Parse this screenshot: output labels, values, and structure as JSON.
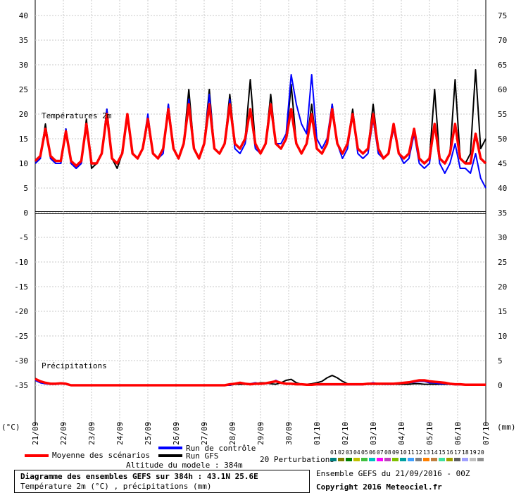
{
  "chart_data": {
    "type": "line",
    "left_axis": {
      "unit": "(°C)",
      "ticks": [
        40,
        35,
        30,
        25,
        20,
        15,
        10,
        5,
        0,
        -5,
        -10,
        -15,
        -20,
        -25,
        -30,
        -35
      ],
      "range": [
        -35,
        40
      ]
    },
    "right_axis": {
      "unit": "(mm)",
      "ticks": [
        75,
        70,
        65,
        60,
        55,
        50,
        45,
        40,
        35,
        30,
        25,
        20,
        15,
        10,
        5,
        0
      ],
      "range": [
        0,
        75
      ]
    },
    "x_ticks": [
      "21/09",
      "22/09",
      "23/09",
      "24/09",
      "25/09",
      "26/09",
      "27/09",
      "28/09",
      "29/09",
      "30/09",
      "01/10",
      "02/10",
      "03/10",
      "04/10",
      "05/10",
      "06/10",
      "07/10"
    ],
    "temp_label": "Températures 2m",
    "precip_label": "Précipitations",
    "series": [
      {
        "name": "Moyenne des scénarios",
        "color": "#ff0000",
        "temp": [
          10.5,
          11.5,
          17,
          11.5,
          10.5,
          10.5,
          16.5,
          10.5,
          9.5,
          10.5,
          18,
          10,
          10,
          12,
          20,
          11,
          10,
          12,
          20,
          12,
          11,
          13,
          19,
          12,
          11,
          13,
          21,
          13,
          11,
          14,
          22,
          13,
          11,
          14,
          22,
          13,
          12,
          14,
          22,
          14,
          13,
          15,
          21,
          14,
          12,
          14,
          22,
          14,
          13,
          15,
          21,
          14,
          12,
          14,
          20,
          13,
          12,
          14,
          21,
          14,
          12,
          14,
          20,
          13,
          12,
          13,
          20,
          13,
          11,
          12,
          18,
          12,
          11,
          12,
          17,
          11,
          10,
          11,
          18,
          11,
          10,
          12,
          18,
          11,
          10,
          10,
          16,
          11,
          10
        ],
        "precip": [
          1.3,
          0.8,
          0.5,
          0.3,
          0.3,
          0.4,
          0.3,
          0,
          0,
          0,
          0,
          0,
          0,
          0,
          0,
          0,
          0,
          0,
          0,
          0,
          0,
          0,
          0,
          0,
          0,
          0,
          0,
          0,
          0,
          0,
          0,
          0,
          0,
          0,
          0,
          0,
          0,
          0,
          0.2,
          0.3,
          0.5,
          0.3,
          0.2,
          0.3,
          0.3,
          0.4,
          0.6,
          0.8,
          0.5,
          0.3,
          0.3,
          0.2,
          0.2,
          0.1,
          0.1,
          0.2,
          0.2,
          0.2,
          0.2,
          0.2,
          0.2,
          0.2,
          0.2,
          0.2,
          0.2,
          0.3,
          0.3,
          0.3,
          0.3,
          0.3,
          0.3,
          0.4,
          0.5,
          0.6,
          0.8,
          1.0,
          1.0,
          0.8,
          0.7,
          0.6,
          0.5,
          0.3,
          0.2,
          0.2,
          0.1,
          0.1,
          0.1,
          0.1,
          0.1
        ]
      },
      {
        "name": "Run de contrôle",
        "color": "#0000ff",
        "temp": [
          10,
          11,
          17,
          11,
          10,
          10,
          17,
          10,
          9,
          10,
          18,
          10,
          10,
          12,
          21,
          11,
          10,
          12,
          20,
          12,
          11,
          13,
          20,
          12,
          11,
          12,
          22,
          13,
          11,
          14,
          23,
          13,
          11,
          14,
          24,
          13,
          12,
          14,
          23,
          13,
          12,
          14,
          21,
          13,
          12,
          14,
          22,
          14,
          14,
          16,
          28,
          22,
          18,
          16,
          28,
          15,
          13,
          15,
          22,
          14,
          11,
          13,
          20,
          12,
          11,
          12,
          19,
          12,
          11,
          12,
          17,
          12,
          10,
          11,
          16,
          10,
          9,
          10,
          18,
          10,
          8,
          10,
          14,
          9,
          9,
          8,
          12,
          7,
          5
        ],
        "precip": [
          1,
          0.5,
          0.3,
          0.2,
          0.2,
          0.3,
          0.2,
          0,
          0,
          0,
          0,
          0,
          0,
          0,
          0,
          0,
          0,
          0,
          0,
          0,
          0,
          0,
          0,
          0,
          0,
          0,
          0,
          0,
          0,
          0,
          0,
          0,
          0,
          0,
          0,
          0,
          0,
          0,
          0,
          0.3,
          0.5,
          0.3,
          0.3,
          0.5,
          0.3,
          0.3,
          0.5,
          1.0,
          0.5,
          0.3,
          0.3,
          0.2,
          0.2,
          0.1,
          0.1,
          0.1,
          0.1,
          0.1,
          0.1,
          0.1,
          0.1,
          0.1,
          0.1,
          0.1,
          0.1,
          0.3,
          0.5,
          0.3,
          0.2,
          0.2,
          0.2,
          0.3,
          0.5,
          0.5,
          0.6,
          0.8,
          0.8,
          0.5,
          0.5,
          0.3,
          0.3,
          0.2,
          0.1,
          0.1,
          0.1,
          0.1,
          0.1,
          0.1,
          0.1
        ]
      },
      {
        "name": "Run GFS",
        "color": "#000000",
        "temp": [
          10,
          11,
          18,
          11,
          10,
          10,
          17,
          10,
          9,
          10,
          19,
          9,
          10,
          12,
          21,
          11,
          9,
          12,
          20,
          12,
          11,
          13,
          19,
          12,
          11,
          13,
          22,
          13,
          11,
          14,
          25,
          13,
          11,
          14,
          25,
          13,
          12,
          14,
          24,
          14,
          13,
          15,
          27,
          14,
          12,
          14,
          24,
          14,
          13,
          15,
          26,
          14,
          12,
          14,
          22,
          13,
          12,
          14,
          22,
          14,
          12,
          14,
          21,
          13,
          12,
          13,
          22,
          13,
          11,
          12,
          18,
          12,
          11,
          12,
          17,
          11,
          10,
          11,
          25,
          11,
          10,
          12,
          27,
          11,
          10,
          12,
          29,
          13,
          15
        ],
        "precip": [
          1.3,
          0.7,
          0.4,
          0.3,
          0.3,
          0.3,
          0.3,
          0,
          0,
          0,
          0,
          0,
          0,
          0,
          0,
          0,
          0,
          0,
          0,
          0,
          0,
          0,
          0,
          0,
          0,
          0,
          0,
          0,
          0,
          0,
          0,
          0,
          0,
          0,
          0,
          0,
          0,
          0,
          0,
          0.2,
          0.2,
          0.2,
          0.2,
          0.3,
          0.5,
          0.5,
          0.3,
          0.2,
          0.5,
          1.0,
          1.2,
          0.5,
          0.2,
          0.2,
          0.3,
          0.5,
          0.8,
          1.5,
          2.0,
          1.5,
          0.8,
          0.3,
          0.2,
          0.2,
          0.2,
          0.2,
          0.2,
          0.2,
          0.2,
          0.2,
          0.2,
          0.2,
          0.2,
          0.2,
          0.3,
          0.3,
          0.2,
          0.2,
          0.2,
          0.2,
          0.2,
          0.2,
          0.2,
          0.1,
          0.1,
          0.1,
          0.1,
          0.1,
          0.1
        ]
      }
    ],
    "legend": {
      "mean": "Moyenne des scénarios",
      "control": "Run de contrôle",
      "gfs": "Run GFS",
      "perturbations": "20 Perturbations"
    },
    "perturbation_labels": [
      "01",
      "02",
      "03",
      "04",
      "05",
      "06",
      "07",
      "08",
      "09",
      "10",
      "11",
      "12",
      "13",
      "14",
      "15",
      "16",
      "17",
      "18",
      "19",
      "20"
    ],
    "perturbation_colors": [
      "#008080",
      "#808000",
      "#008000",
      "#c0c000",
      "#40c040",
      "#00c0c0",
      "#ff00ff",
      "#c040c0",
      "#80c000",
      "#00a0a0",
      "#40a0ff",
      "#808080",
      "#ff8000",
      "#c08040",
      "#40e0a0",
      "#a0a000",
      "#606060",
      "#a0a0ff",
      "#c0c0c0",
      "#909090"
    ]
  },
  "info": {
    "altitude": "Altitude du modele : 384m",
    "title": "Diagramme des ensembles GEFS sur 384h : 43.1N 25.6E",
    "subtitle": "Température 2m (°C) , précipitations (mm)",
    "run": "Ensemble GEFS du 21/09/2016 - 00Z",
    "copyright": "Copyright 2016 Meteociel.fr"
  }
}
